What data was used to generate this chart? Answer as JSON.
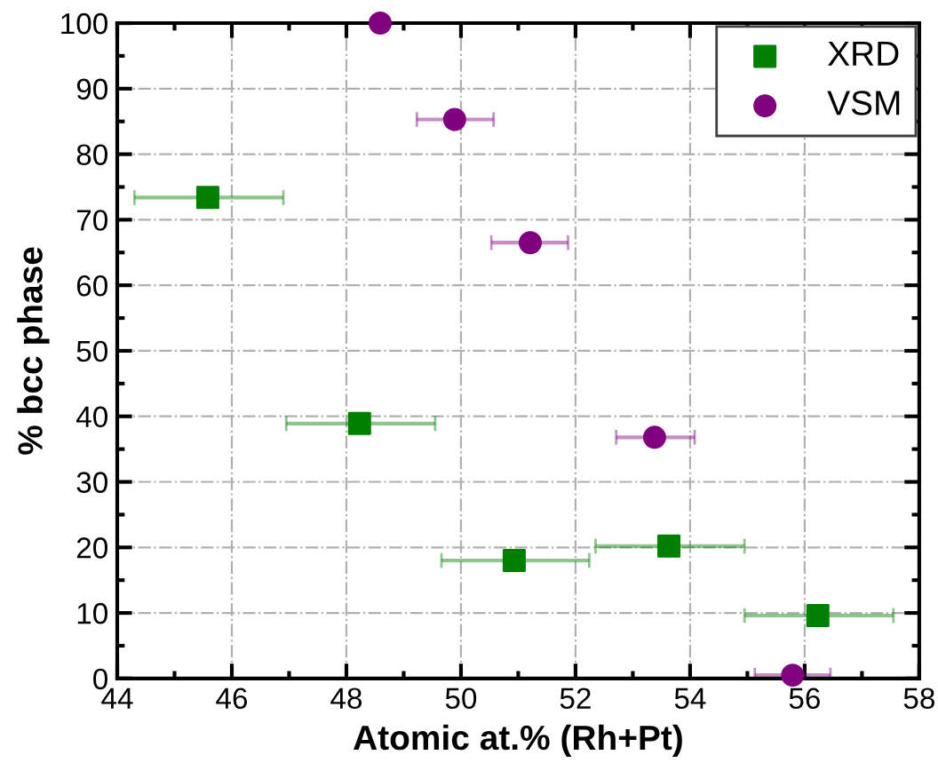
{
  "chart_data": {
    "type": "scatter",
    "xlabel": "Atomic at.% (Rh+Pt)",
    "ylabel": "% bcc phase",
    "xlim": [
      44,
      58
    ],
    "xticks": [
      44,
      46,
      48,
      50,
      52,
      54,
      56,
      58
    ],
    "ylim": [
      0,
      100
    ],
    "yticks": [
      0,
      10,
      20,
      30,
      40,
      50,
      60,
      70,
      80,
      90,
      100
    ],
    "grid": true,
    "legend": "top right",
    "series": [
      {
        "name": "XRD",
        "color": "#008000",
        "marker": "square",
        "x": [
          45.58,
          48.23,
          50.93,
          53.63,
          56.23
        ],
        "values": [
          73.4,
          38.9,
          18.0,
          20.2,
          9.6
        ],
        "xerrors": [
          [
            44.3,
            46.9
          ],
          [
            46.95,
            49.55
          ],
          [
            49.66,
            52.24
          ],
          [
            52.35,
            54.95
          ],
          [
            54.95,
            57.55
          ]
        ]
      },
      {
        "name": "VSM",
        "color": "#800080",
        "marker": "circle",
        "x": [
          48.59,
          49.89,
          51.21,
          53.38,
          55.79
        ],
        "values": [
          100,
          85.3,
          66.5,
          36.8,
          0.5
        ],
        "xerrors": [
          null,
          [
            49.23,
            50.57
          ],
          [
            50.53,
            51.87
          ],
          [
            52.71,
            54.08
          ],
          [
            55.13,
            56.45
          ]
        ]
      }
    ]
  }
}
